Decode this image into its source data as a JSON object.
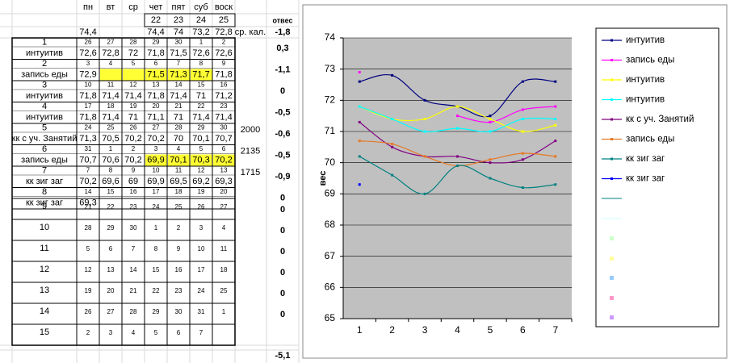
{
  "sheet": {
    "days": [
      "пн",
      "вт",
      "ср",
      "чет",
      "пят",
      "суб",
      "воск"
    ],
    "header_dates": [
      "22",
      "23",
      "24",
      "25"
    ],
    "header_weights": [
      "74,4",
      null,
      null,
      "74,4",
      "74",
      "73,2",
      "72,8"
    ],
    "kcal_label": "ср. кал.",
    "otves_header": "отвес",
    "otves_top": "-1,8",
    "highlight_color": "#ffff33",
    "weeks": [
      {
        "num": "1",
        "dates": [
          "26",
          "27",
          "28",
          "29",
          "30",
          "1",
          "2"
        ],
        "name": "интуитив",
        "weights": [
          "72,6",
          "72,8",
          "72",
          "71,8",
          "71,5",
          "72,6",
          "72,6"
        ],
        "otves": "0,3"
      },
      {
        "num": "2",
        "dates": [
          "3",
          "4",
          "5",
          "6",
          "7",
          "8",
          "9"
        ],
        "name": "запись еды",
        "weights": [
          "72,9",
          null,
          null,
          "71,5",
          "71,3",
          "71,7",
          "71,8"
        ],
        "highlight": [
          false,
          true,
          true,
          true,
          true,
          true,
          false
        ],
        "otves": "-1,1"
      },
      {
        "num": "3",
        "dates": [
          "10",
          "11",
          "12",
          "13",
          "14",
          "15",
          "16"
        ],
        "name": "интуитив",
        "weights": [
          "71,8",
          "71,4",
          "71,4",
          "71,8",
          "71,4",
          "71",
          "71,2"
        ],
        "otves": "0"
      },
      {
        "num": "4",
        "dates": [
          "17",
          "18",
          "19",
          "20",
          "21",
          "22",
          "23"
        ],
        "name": "интуитив",
        "weights": [
          "71,8",
          "71,4",
          "71",
          "71,1",
          "71",
          "71,4",
          "71,4"
        ],
        "otves": "-0,5"
      },
      {
        "num": "5",
        "dates": [
          "24",
          "25",
          "26",
          "27",
          "28",
          "29",
          "30"
        ],
        "name": "кк с уч. Занятий",
        "weights": [
          "71,3",
          "70,5",
          "70,2",
          "70,2",
          "70",
          "70,1",
          "70,7"
        ],
        "kcal": "2000",
        "otves": "-0,6"
      },
      {
        "num": "6",
        "dates": [
          "31",
          "1",
          "2",
          "3",
          "4",
          "5",
          "6"
        ],
        "name": "запись еды",
        "weights": [
          "70,7",
          "70,6",
          "70,2",
          "69,9",
          "70,1",
          "70,3",
          "70,2"
        ],
        "highlight": [
          false,
          false,
          false,
          true,
          true,
          true,
          true
        ],
        "kcal": "2135",
        "otves": "-0,5"
      },
      {
        "num": "7",
        "dates": [
          "7",
          "8",
          "9",
          "10",
          "11",
          "12",
          "13"
        ],
        "name": "кк зиг заг",
        "weights": [
          "70,2",
          "69,6",
          "69",
          "69,9",
          "69,5",
          "69,2",
          "69,3"
        ],
        "kcal": "1715",
        "otves": "-0,9"
      },
      {
        "num": "8",
        "dates": [
          "14",
          "15",
          "16",
          "17",
          "18",
          "19",
          "20"
        ],
        "name": "кк зиг заг",
        "weights": [
          "69,3"
        ],
        "otves": "0"
      },
      {
        "num": "9",
        "dates": [
          "21",
          "22",
          "23",
          "24",
          "25",
          "26",
          "27"
        ],
        "otves": "0"
      },
      {
        "num": "10",
        "dates": [
          "28",
          "29",
          "30",
          "1",
          "2",
          "3",
          "4"
        ],
        "otves": "0"
      },
      {
        "num": "11",
        "dates": [
          "5",
          "6",
          "7",
          "8",
          "9",
          "10",
          "11"
        ],
        "otves": "0"
      },
      {
        "num": "12",
        "dates": [
          "12",
          "13",
          "14",
          "15",
          "16",
          "17",
          "18"
        ],
        "otves": "0"
      },
      {
        "num": "13",
        "dates": [
          "19",
          "20",
          "21",
          "22",
          "23",
          "24",
          "25"
        ],
        "otves": "0"
      },
      {
        "num": "14",
        "dates": [
          "26",
          "27",
          "28",
          "29",
          "30",
          "31",
          "1"
        ],
        "otves": "0"
      },
      {
        "num": "15",
        "dates": [
          "2",
          "3",
          "4",
          "5",
          "6",
          "7"
        ]
      }
    ],
    "total": "-5,1"
  },
  "chart_data": {
    "type": "line",
    "y_label": "вес",
    "categories": [
      "1",
      "2",
      "3",
      "4",
      "5",
      "6",
      "7"
    ],
    "ylim": [
      65,
      74
    ],
    "yticks": [
      65,
      66,
      67,
      68,
      69,
      70,
      71,
      72,
      73,
      74
    ],
    "grid": true,
    "smooth": true,
    "series": [
      {
        "name": "интуитив",
        "color": "#000080",
        "values": [
          72.6,
          72.8,
          72,
          71.8,
          71.5,
          72.6,
          72.6
        ]
      },
      {
        "name": "запись еды",
        "color": "#ff00ff",
        "values": [
          72.9,
          null,
          null,
          71.5,
          71.3,
          71.7,
          71.8
        ]
      },
      {
        "name": "интуитив",
        "color": "#ffff00",
        "values": [
          71.8,
          71.4,
          71.4,
          71.8,
          71.4,
          71,
          71.2
        ]
      },
      {
        "name": "интуитив",
        "color": "#00ffff",
        "values": [
          71.8,
          71.4,
          71,
          71.1,
          71,
          71.4,
          71.4
        ]
      },
      {
        "name": "кк с уч. Занятий",
        "color": "#800080",
        "values": [
          71.3,
          70.5,
          70.2,
          70.2,
          70,
          70.1,
          70.7
        ]
      },
      {
        "name": "запись еды",
        "color": "#e87722",
        "values": [
          70.7,
          70.6,
          70.2,
          69.9,
          70.1,
          70.3,
          70.2
        ]
      },
      {
        "name": "кк зиг заг",
        "color": "#008080",
        "values": [
          70.2,
          69.6,
          69,
          69.9,
          69.5,
          69.2,
          69.3
        ]
      },
      {
        "name": "кк зиг заг",
        "color": "#0000ff",
        "values": [
          69.3,
          null,
          null,
          null,
          null,
          null,
          null
        ]
      }
    ]
  }
}
